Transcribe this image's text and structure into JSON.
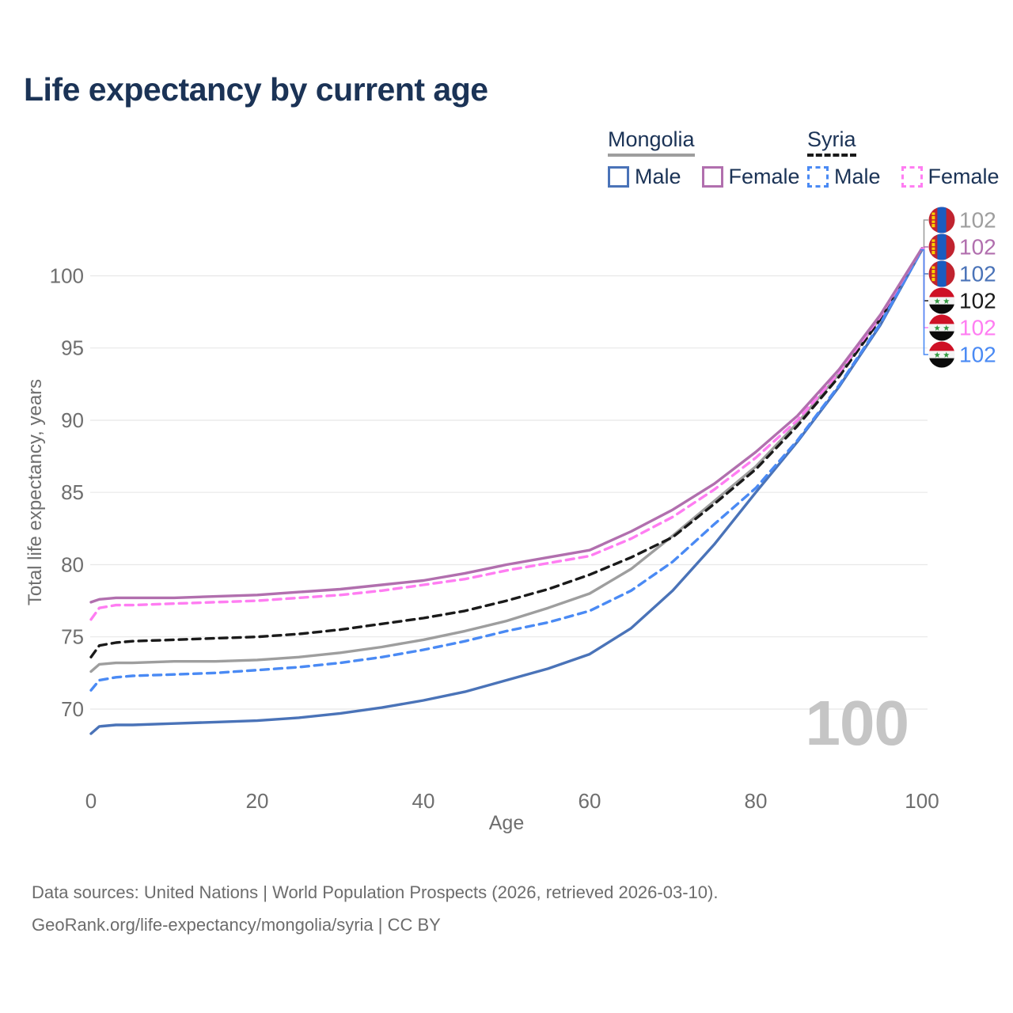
{
  "title": "Life expectancy by current age",
  "legend": {
    "groups": [
      {
        "label": "Mongolia",
        "line_style": "solid",
        "line_color": "#9e9e9e",
        "items": [
          {
            "label": "Male",
            "color": "#4a73b8",
            "dash": false
          },
          {
            "label": "Female",
            "color": "#b16fae",
            "dash": false
          }
        ]
      },
      {
        "label": "Syria",
        "line_style": "dashed",
        "line_color": "#1a1a1a",
        "items": [
          {
            "label": "Male",
            "color": "#4a8af4",
            "dash": true
          },
          {
            "label": "Female",
            "color": "#ff7df2",
            "dash": true
          }
        ]
      }
    ]
  },
  "chart_data": {
    "type": "line",
    "title": "Life expectancy by current age",
    "xlabel": "Age",
    "ylabel": "Total life expectancy, years",
    "x_ticks": [
      0,
      20,
      40,
      60,
      80,
      100
    ],
    "y_ticks": [
      70,
      75,
      80,
      85,
      90,
      95,
      100
    ],
    "xlim": [
      0,
      100
    ],
    "ylim": [
      66.6,
      104.3
    ],
    "grid": "horizontal",
    "ages": [
      0,
      1,
      3,
      5,
      10,
      15,
      20,
      25,
      30,
      35,
      40,
      45,
      50,
      55,
      60,
      65,
      70,
      75,
      80,
      85,
      90,
      95,
      100
    ],
    "series": [
      {
        "name": "Mongolia",
        "country": "Mongolia",
        "sex": "Both sexes",
        "color": "#9e9e9e",
        "dash": false,
        "flag": "mongolia",
        "end_label": "102",
        "values": [
          72.6,
          73.1,
          73.2,
          73.2,
          73.3,
          73.3,
          73.4,
          73.6,
          73.9,
          74.3,
          74.8,
          75.4,
          76.1,
          77.0,
          78.0,
          79.7,
          82.0,
          84.4,
          86.8,
          89.8,
          93.2,
          97.1,
          101.9
        ]
      },
      {
        "name": "Mongolia Female",
        "country": "Mongolia",
        "sex": "Female",
        "color": "#b16fae",
        "dash": false,
        "flag": "mongolia",
        "end_label": "102",
        "values": [
          77.4,
          77.6,
          77.7,
          77.7,
          77.7,
          77.8,
          77.9,
          78.1,
          78.3,
          78.6,
          78.9,
          79.4,
          80.0,
          80.5,
          81.0,
          82.3,
          83.8,
          85.6,
          87.8,
          90.3,
          93.5,
          97.3,
          101.9
        ]
      },
      {
        "name": "Mongolia Male",
        "country": "Mongolia",
        "sex": "Male",
        "color": "#4a73b8",
        "dash": false,
        "flag": "mongolia",
        "end_label": "102",
        "values": [
          68.3,
          68.8,
          68.9,
          68.9,
          69.0,
          69.1,
          69.2,
          69.4,
          69.7,
          70.1,
          70.6,
          71.2,
          72.0,
          72.8,
          73.8,
          75.6,
          78.2,
          81.4,
          85.0,
          88.5,
          92.3,
          96.6,
          101.8
        ]
      },
      {
        "name": "Syria",
        "country": "Syria",
        "sex": "Both sexes",
        "color": "#1a1a1a",
        "dash": true,
        "flag": "syria",
        "end_label": "102",
        "values": [
          73.6,
          74.4,
          74.6,
          74.7,
          74.8,
          74.9,
          75.0,
          75.2,
          75.5,
          75.9,
          76.3,
          76.8,
          77.5,
          78.3,
          79.3,
          80.5,
          81.9,
          84.2,
          86.6,
          89.6,
          93.0,
          97.0,
          101.9
        ]
      },
      {
        "name": "Syria Female",
        "country": "Syria",
        "sex": "Female",
        "color": "#ff7df2",
        "dash": true,
        "flag": "syria",
        "end_label": "102",
        "values": [
          76.2,
          77.0,
          77.2,
          77.2,
          77.3,
          77.4,
          77.5,
          77.7,
          77.9,
          78.2,
          78.6,
          79.0,
          79.6,
          80.1,
          80.6,
          81.8,
          83.3,
          85.2,
          87.4,
          90.0,
          93.3,
          97.2,
          101.9
        ]
      },
      {
        "name": "Syria Male",
        "country": "Syria",
        "sex": "Male",
        "color": "#4a8af4",
        "dash": true,
        "flag": "syria",
        "end_label": "102",
        "values": [
          71.3,
          72.0,
          72.2,
          72.3,
          72.4,
          72.5,
          72.7,
          72.9,
          73.2,
          73.6,
          74.1,
          74.7,
          75.4,
          76.0,
          76.8,
          78.2,
          80.2,
          82.8,
          85.3,
          88.6,
          92.4,
          96.7,
          101.8
        ]
      }
    ]
  },
  "watermark": {
    "text": "100"
  },
  "footer": {
    "line1": "Data sources: United Nations | World Population Prospects (2026, retrieved 2026-03-10).",
    "line2": "GeoRank.org/life-expectancy/mongolia/syria | CC BY"
  },
  "flag_colors": {
    "mongolia": {
      "red": "#c0232f",
      "blue": "#1a5cc0",
      "yellow": "#f9cf02"
    },
    "syria": {
      "red": "#ce1126",
      "white": "#f4f4f4",
      "black": "#0a0a0a",
      "green": "#339b41"
    }
  },
  "colors": {
    "title": "#1b3356",
    "axis_text": "#6e6e6e",
    "gridline": "#e8e8e8",
    "watermark": "#c5c5c5",
    "footer_text": "#6c6c6c"
  }
}
